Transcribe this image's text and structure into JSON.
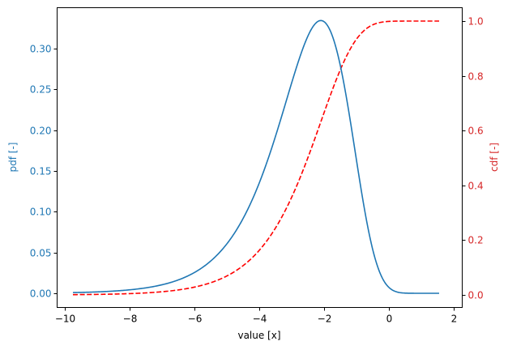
{
  "chart_data": {
    "type": "line",
    "title": "",
    "xlabel": "value [x]",
    "ylabel_left": "pdf [-]",
    "ylabel_right": "cdf [-]",
    "xlim": [
      -10.3,
      2.2
    ],
    "ylim_left": [
      -0.0167,
      0.35
    ],
    "ylim_right": [
      -0.05,
      1.05
    ],
    "xticks": [
      -10,
      -8,
      -6,
      -4,
      -2,
      0,
      2
    ],
    "xtick_labels": [
      "−10",
      "−8",
      "−6",
      "−4",
      "−2",
      "0",
      "2"
    ],
    "yticks_left": [
      0.0,
      0.05,
      0.1,
      0.15,
      0.2,
      0.25,
      0.3
    ],
    "ytick_labels_left": [
      "0.00",
      "0.05",
      "0.10",
      "0.15",
      "0.20",
      "0.25",
      "0.30"
    ],
    "yticks_right": [
      0.0,
      0.2,
      0.4,
      0.6,
      0.8,
      1.0
    ],
    "ytick_labels_right": [
      "0.0",
      "0.2",
      "0.4",
      "0.6",
      "0.8",
      "1.0"
    ],
    "grid": false,
    "legend": null,
    "colors": {
      "pdf": "#1f77b4",
      "cdf": "#ff0000",
      "left_axis_text": "#1f77b4",
      "right_axis_text": "#d62728",
      "axes": "#000000"
    },
    "series": [
      {
        "name": "pdf",
        "axis": "left",
        "style": "solid",
        "x": [
          -9.75,
          -9,
          -8,
          -7,
          -6,
          -5.5,
          -5,
          -4.5,
          -4,
          -3.5,
          -3,
          -2.75,
          -2.5,
          -2.3,
          -2.1,
          -1.9,
          -1.7,
          -1.5,
          -1.3,
          -1.1,
          -1,
          -0.8,
          -0.6,
          -0.5,
          -0.3,
          0,
          0.5,
          1.0,
          1.55
        ],
        "values": [
          0.003,
          0.002,
          0.0043,
          0.0105,
          0.0255,
          0.0395,
          0.0606,
          0.092,
          0.135,
          0.192,
          0.258,
          0.289,
          0.315,
          0.33,
          0.3345,
          0.328,
          0.307,
          0.278,
          0.233,
          0.178,
          0.163,
          0.105,
          0.072,
          0.0535,
          0.022,
          0.0072,
          0.0,
          0.0,
          0.0
        ]
      },
      {
        "name": "cdf",
        "axis": "right",
        "style": "dashed",
        "x": [
          -9.75,
          -9,
          -8,
          -7,
          -6,
          -5.5,
          -5,
          -4.5,
          -4,
          -3.5,
          -3,
          -2.75,
          -2.5,
          -2.3,
          -2.1,
          -1.9,
          -1.7,
          -1.5,
          -1.3,
          -1.1,
          -1,
          -0.8,
          -0.6,
          -0.5,
          -0.3,
          0,
          0.5,
          1.0,
          1.55
        ],
        "values": [
          0.003,
          0.0019,
          0.0047,
          0.0114,
          0.028,
          0.044,
          0.069,
          0.107,
          0.163,
          0.244,
          0.357,
          0.425,
          0.501,
          0.566,
          0.632,
          0.7,
          0.765,
          0.822,
          0.872,
          0.912,
          0.934,
          0.962,
          0.98,
          0.986,
          0.994,
          0.9988,
          1.0,
          1.0,
          1.0
        ]
      }
    ]
  }
}
